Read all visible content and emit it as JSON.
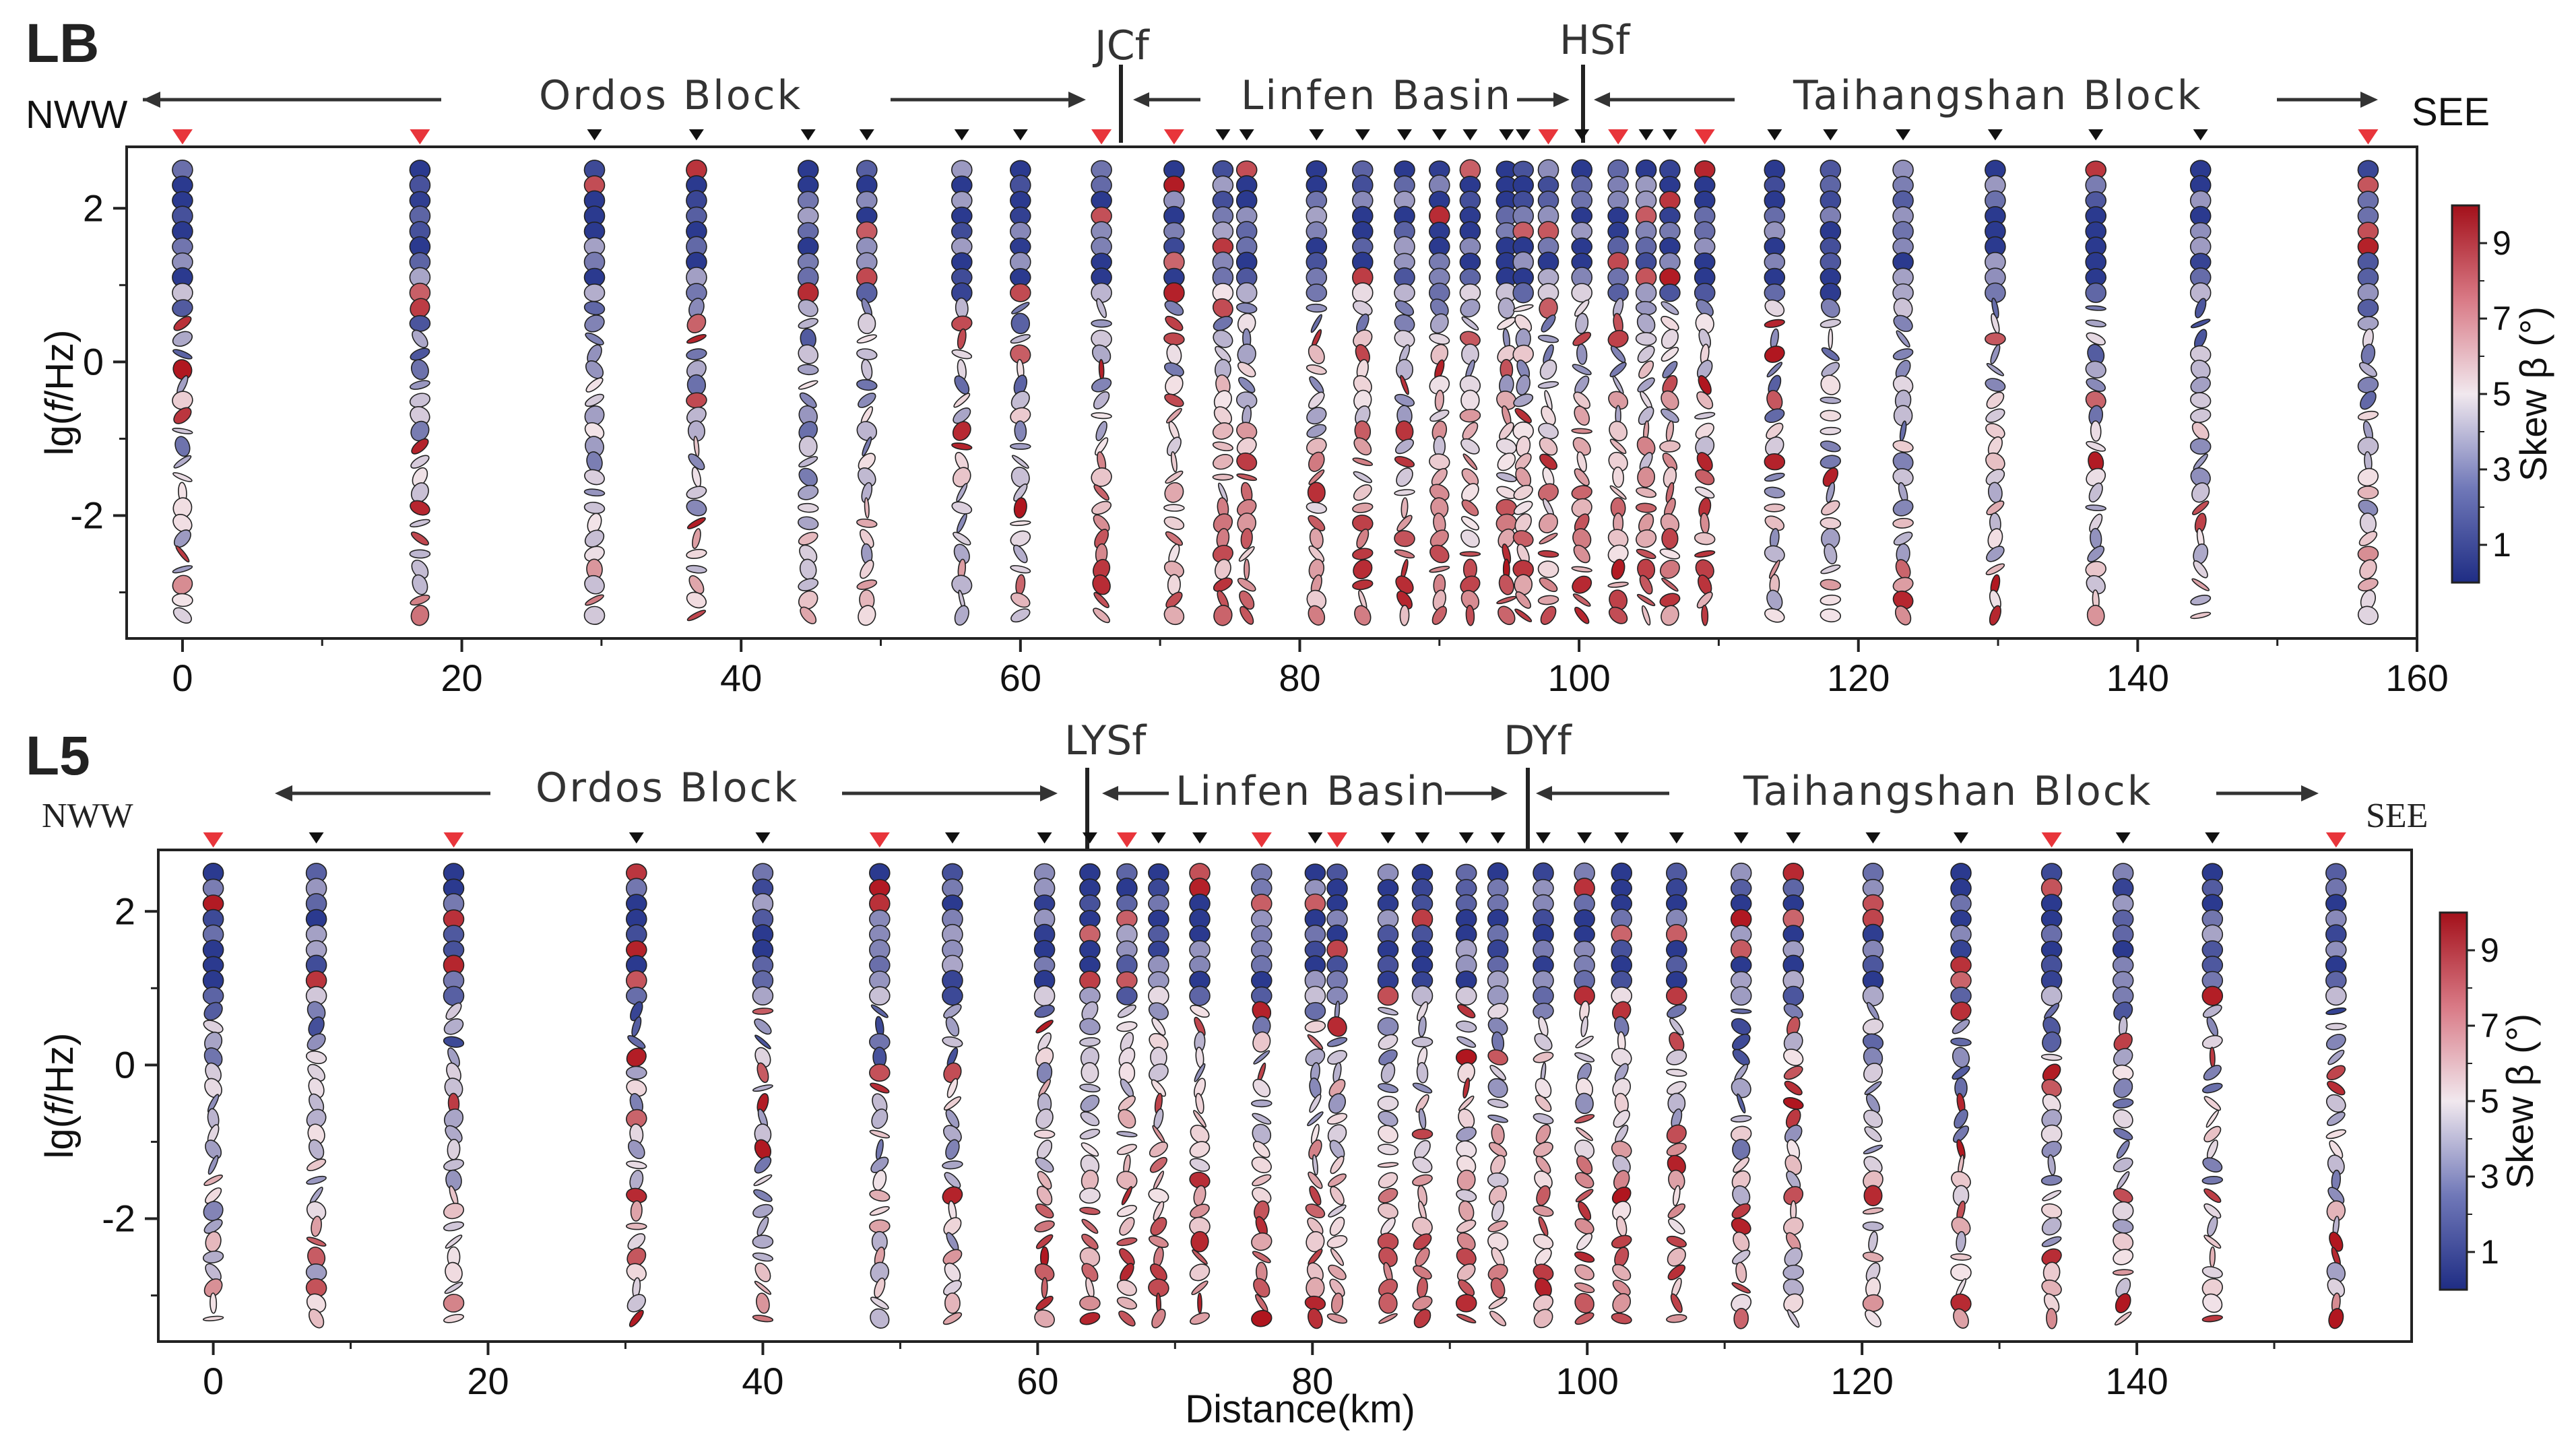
{
  "colors": {
    "low": "#2b3a8f",
    "mid": "#f3e4e8",
    "high": "#b0151e",
    "station_normal": "#111111",
    "station_highlight": "#e8353b",
    "arrow": "#333333"
  },
  "chart_data": [
    {
      "id": "LB",
      "type": "scatter",
      "title": "LB",
      "xlabel": "",
      "ylabel": "lg(f/Hz)",
      "ylabel_prefix": "lg(",
      "ylabel_italic": "f",
      "ylabel_suffix": "/Hz)",
      "xlim": [
        -4,
        160
      ],
      "ylim": [
        -3.6,
        2.8
      ],
      "xticks": [
        0,
        20,
        40,
        60,
        80,
        100,
        120,
        140,
        160
      ],
      "yticks": [
        -2,
        0,
        2
      ],
      "colorbar": {
        "label": "Skew β (°)",
        "range": [
          0,
          10
        ],
        "ticks": [
          1,
          3,
          5,
          7,
          9
        ]
      },
      "direction_left": "NWW",
      "direction_right": "SEE",
      "regions": [
        {
          "label": "Ordos Block",
          "from": -4,
          "to": 68.5
        },
        {
          "label": "Linfen Basin",
          "from": 68.5,
          "to": 102
        },
        {
          "label": "Taihangshan Block",
          "from": 102,
          "to": 158
        }
      ],
      "faults": [
        {
          "label": "JCf",
          "x": 68.5
        },
        {
          "label": "HSf",
          "x": 102
        }
      ],
      "stations": [
        0,
        17,
        29.5,
        36.8,
        44.8,
        49,
        55.8,
        60,
        65.8,
        71,
        74.5,
        76.2,
        81.2,
        84.5,
        87.5,
        90,
        92.2,
        94.8,
        96,
        97.8,
        100.2,
        102.8,
        104.8,
        106.5,
        109,
        114,
        118,
        123.2,
        129.8,
        137,
        144.5,
        156.5
      ],
      "highlighted_stations": [
        0,
        17,
        65.8,
        71,
        97.8,
        102.8,
        109,
        156.5
      ],
      "frequency_range": [
        -3.3,
        2.5
      ],
      "frequency_step": 0.2
    },
    {
      "id": "L5",
      "type": "scatter",
      "title": "L5",
      "xlabel": "Distance(km)",
      "ylabel": "lg(f/Hz)",
      "ylabel_prefix": "lg(",
      "ylabel_italic": "f",
      "ylabel_suffix": "/Hz)",
      "xlim": [
        -4,
        160
      ],
      "ylim": [
        -3.6,
        2.8
      ],
      "xticks": [
        0,
        20,
        40,
        60,
        80,
        100,
        120,
        140
      ],
      "yticks": [
        -2,
        0,
        2
      ],
      "colorbar": {
        "label": "Skew β (°)",
        "range": [
          0,
          10
        ],
        "ticks": [
          1,
          3,
          5,
          7,
          9
        ]
      },
      "direction_left": "NWW",
      "direction_right": "SEE",
      "regions": [
        {
          "label": "Ordos Block",
          "from": -4,
          "to": 65
        },
        {
          "label": "Linfen Basin",
          "from": 65,
          "to": 96.5
        },
        {
          "label": "Taihangshan Block",
          "from": 96.5,
          "to": 158
        }
      ],
      "faults": [
        {
          "label": "LYSf",
          "x": 65
        },
        {
          "label": "DYf",
          "x": 96.5
        }
      ],
      "stations": [
        0,
        7.5,
        17.5,
        30.8,
        40,
        48.5,
        53.8,
        60.5,
        63.8,
        66.5,
        68.8,
        71.8,
        76.3,
        80.2,
        81.8,
        85.5,
        88,
        91.2,
        93.5,
        96.8,
        99.8,
        102.5,
        106.5,
        111.2,
        115,
        120.8,
        127.2,
        133.8,
        139,
        145.5,
        154.5
      ],
      "highlighted_stations": [
        0,
        17.5,
        48.5,
        66.5,
        76.3,
        81.8,
        133.8,
        154.5
      ],
      "frequency_range": [
        -3.3,
        2.5
      ],
      "frequency_step": 0.2
    }
  ]
}
